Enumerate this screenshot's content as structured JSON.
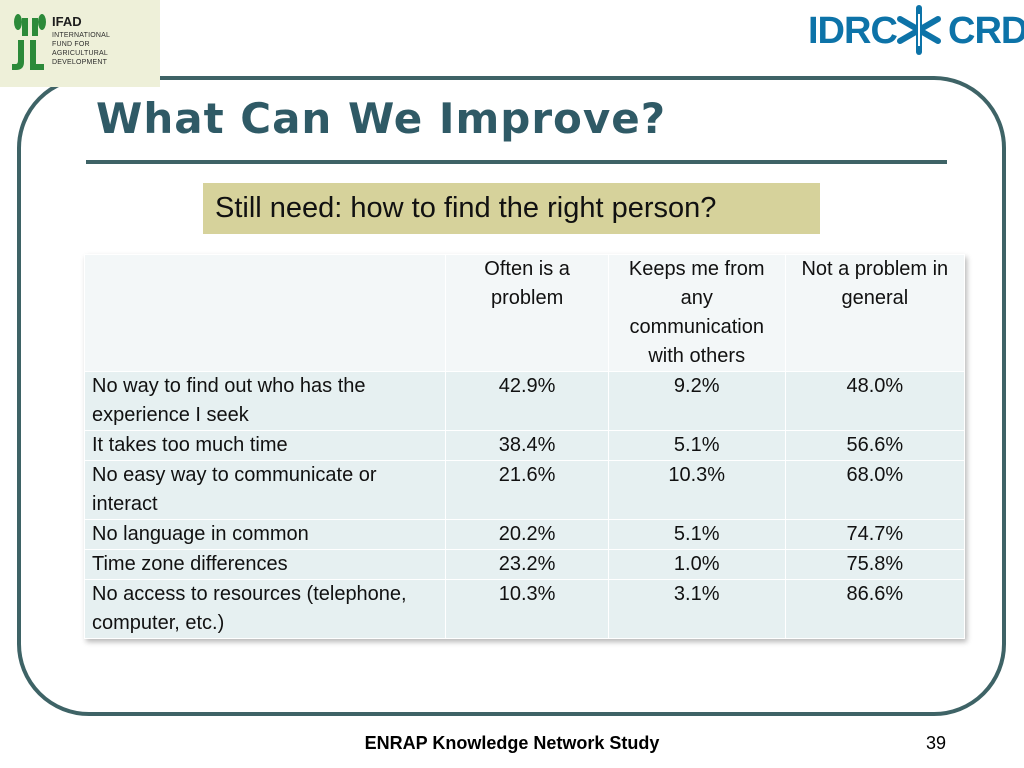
{
  "logos": {
    "ifad_name": "IFAD",
    "ifad_lines": [
      "INTERNATIONAL",
      "FUND FOR",
      "AGRICULTURAL",
      "DEVELOPMENT"
    ],
    "idrc_left": "IDRC",
    "idrc_right": "CRDI"
  },
  "slide": {
    "title": "What Can We Improve?",
    "callout": "Still need: how to find the right person?",
    "footer": "ENRAP Knowledge Network Study",
    "page_number": "39"
  },
  "table": {
    "headers": [
      "",
      "Often is a problem",
      "Keeps me from any communication with others",
      "Not a problem in general"
    ],
    "rows": [
      {
        "label": "No way to find out who has the experience I seek",
        "often": "42.9%",
        "keeps": "9.2%",
        "not": "48.0%"
      },
      {
        "label": "It takes too much time",
        "often": "38.4%",
        "keeps": "5.1%",
        "not": "56.6%"
      },
      {
        "label": "No easy way to communicate or interact",
        "often": "21.6%",
        "keeps": "10.3%",
        "not": "68.0%"
      },
      {
        "label": "No language in common",
        "often": "20.2%",
        "keeps": "5.1%",
        "not": "74.7%"
      },
      {
        "label": "Time zone differences",
        "often": "23.2%",
        "keeps": "1.0%",
        "not": "75.8%"
      },
      {
        "label": "No access to resources (telephone, computer, etc.)",
        "often": "10.3%",
        "keeps": "3.1%",
        "not": "86.6%"
      }
    ]
  },
  "colors": {
    "accent": "#3e6366",
    "title": "#2f5a66",
    "callout_bg": "#d6d29b",
    "ifad_green": "#2c8a3a",
    "idrc_blue": "#0d73a8"
  }
}
